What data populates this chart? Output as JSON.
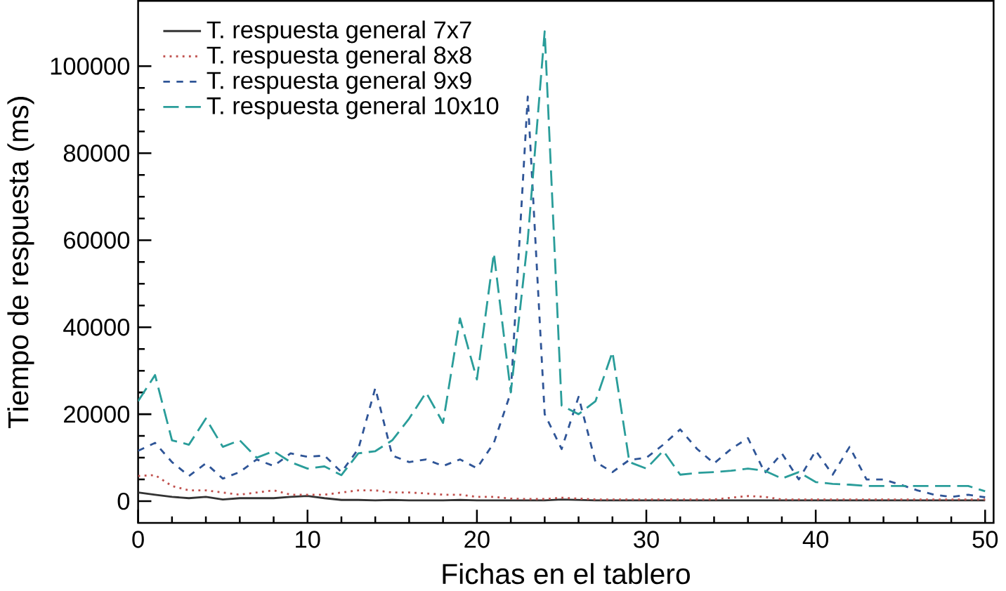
{
  "chart_data": {
    "type": "line",
    "xlabel": "Fichas en el tablero",
    "ylabel": "Tiempo de respuesta (ms)",
    "x": [
      0,
      1,
      2,
      3,
      4,
      5,
      6,
      7,
      8,
      9,
      10,
      11,
      12,
      13,
      14,
      15,
      16,
      17,
      18,
      19,
      20,
      21,
      22,
      23,
      24,
      25,
      26,
      27,
      28,
      29,
      30,
      31,
      32,
      33,
      34,
      35,
      36,
      37,
      38,
      39,
      40,
      41,
      42,
      43,
      44,
      45,
      46,
      47,
      48,
      49,
      50
    ],
    "series": [
      {
        "name": "T. respuesta general 7x7",
        "color": "#333333",
        "line_style": "solid",
        "values": [
          2000,
          1500,
          1000,
          700,
          1000,
          400,
          700,
          700,
          700,
          1000,
          1200,
          700,
          300,
          300,
          200,
          300,
          200,
          200,
          200,
          300,
          200,
          200,
          200,
          200,
          200,
          400,
          300,
          200,
          200,
          200,
          200,
          200,
          200,
          200,
          200,
          200,
          200,
          200,
          200,
          200,
          200,
          200,
          200,
          200,
          200,
          200,
          200,
          200,
          200,
          200,
          200
        ]
      },
      {
        "name": "T. respuesta general 8x8",
        "color": "#c0504d",
        "line_style": "dotted",
        "values": [
          5800,
          6000,
          3500,
          2500,
          2500,
          2000,
          1500,
          2000,
          2500,
          1500,
          1500,
          1500,
          2000,
          2500,
          2500,
          2000,
          2000,
          1800,
          1500,
          1500,
          1000,
          1000,
          600,
          500,
          500,
          800,
          600,
          400,
          400,
          400,
          400,
          400,
          400,
          400,
          400,
          800,
          1200,
          1000,
          400,
          400,
          400,
          400,
          400,
          400,
          400,
          400,
          400,
          400,
          400,
          400,
          400
        ]
      },
      {
        "name": "T. respuesta general 9x9",
        "color": "#2f5597",
        "line_style": "dashed",
        "values": [
          11600,
          13400,
          9000,
          5800,
          8700,
          5200,
          6700,
          9600,
          8100,
          11000,
          10200,
          10500,
          6700,
          12000,
          26000,
          10500,
          9000,
          9600,
          8100,
          9600,
          7600,
          13400,
          25000,
          93000,
          20000,
          12000,
          24000,
          9000,
          6700,
          9500,
          10000,
          13000,
          16500,
          12000,
          8700,
          12000,
          14500,
          6500,
          11000,
          5000,
          11600,
          6100,
          12500,
          5000,
          5000,
          3800,
          2500,
          1500,
          1000,
          1500,
          900
        ]
      },
      {
        "name": "T. respuesta general 10x10",
        "color": "#2a9d9a",
        "line_style": "dashed",
        "values": [
          23000,
          29000,
          14000,
          13000,
          19000,
          12500,
          14000,
          10000,
          11500,
          9000,
          7500,
          8000,
          6000,
          11000,
          11500,
          14000,
          19000,
          25000,
          18000,
          42000,
          28000,
          57000,
          25000,
          60000,
          108000,
          22000,
          20000,
          23000,
          34300,
          9000,
          7500,
          11600,
          6100,
          6500,
          6700,
          7000,
          7500,
          7000,
          5200,
          6700,
          4400,
          4000,
          3800,
          3500,
          3500,
          3500,
          3500,
          3500,
          3500,
          3500,
          2300
        ]
      }
    ],
    "xlim": [
      0,
      50.5
    ],
    "ylim": [
      -5000,
      115000
    ],
    "xticks": [
      0,
      10,
      20,
      30,
      40,
      50
    ],
    "yticks": [
      0,
      20000,
      40000,
      60000,
      80000,
      100000
    ],
    "grid": false,
    "legend": "top left",
    "marker": "none"
  }
}
